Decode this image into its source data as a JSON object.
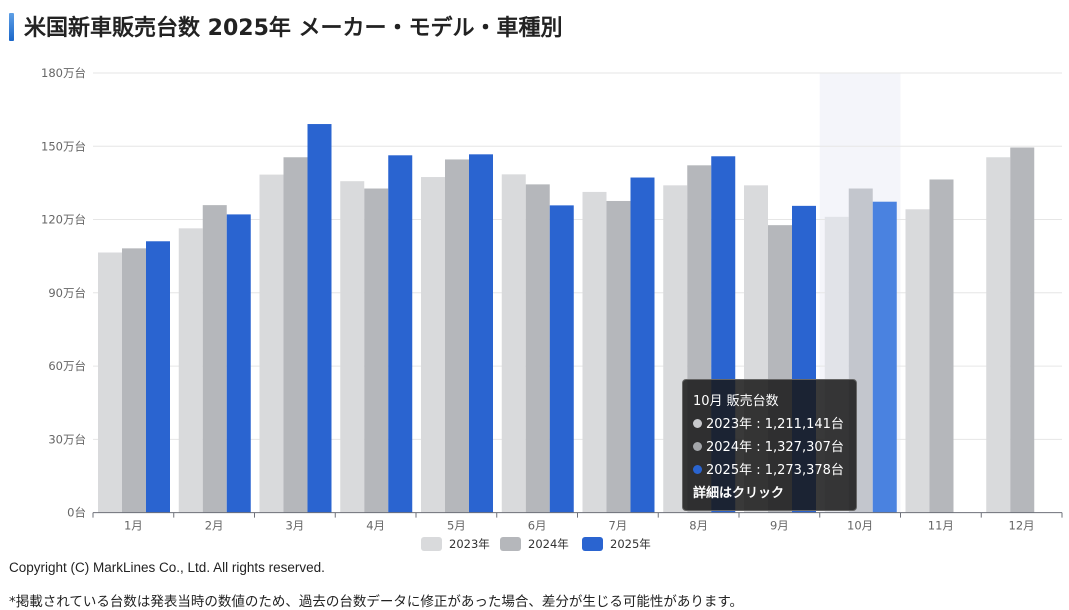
{
  "page": {
    "title": "米国新車販売台数 2025年 メーカー・モデル・車種別",
    "copyright": "Copyright (C) MarkLines Co., Ltd. All rights reserved.",
    "note": "*掲載されている台数は発表当時の数値のため、過去の台数データに修正があった場合、差分が生じる可能性があります。"
  },
  "tooltip": {
    "title": "10月 販売台数",
    "rows": [
      {
        "label": "2023年 : 1,211,141台",
        "color": "#c8c9cc"
      },
      {
        "label": "2024年 : 1,327,307台",
        "color": "#a4a6aa"
      },
      {
        "label": "2025年 : 1,273,378台",
        "color": "#2a64d0"
      }
    ],
    "link": "詳細はクリック"
  },
  "chart_data": {
    "type": "bar",
    "title": "米国新車販売台数 2025年",
    "xlabel": "",
    "ylabel": "",
    "unit": "万台",
    "categories": [
      "1月",
      "2月",
      "3月",
      "4月",
      "5月",
      "6月",
      "7月",
      "8月",
      "9月",
      "10月",
      "11月",
      "12月"
    ],
    "ylim": [
      0,
      180
    ],
    "yticks": [
      0,
      30,
      60,
      90,
      120,
      150,
      180
    ],
    "ytick_labels": [
      "0台",
      "30万台",
      "60万台",
      "90万台",
      "120万台",
      "150万台",
      "180万台"
    ],
    "grid": true,
    "legend_position": "bottom",
    "highlighted_category": "10月",
    "series": [
      {
        "name": "2023年",
        "color": "#d9dadc",
        "values": [
          106.5,
          116.4,
          138.4,
          135.7,
          137.4,
          138.5,
          131.3,
          134.0,
          134.0,
          121.1,
          124.2,
          145.5
        ]
      },
      {
        "name": "2024年",
        "color": "#b5b7bb",
        "values": [
          108.2,
          125.9,
          145.5,
          132.7,
          144.6,
          134.4,
          127.6,
          142.2,
          117.7,
          132.7,
          136.4,
          149.5
        ]
      },
      {
        "name": "2025年",
        "color": "#2a64d0",
        "values": [
          111.1,
          122.1,
          159.1,
          146.3,
          146.7,
          125.8,
          137.2,
          145.9,
          125.6,
          127.3,
          null,
          null
        ]
      }
    ]
  }
}
